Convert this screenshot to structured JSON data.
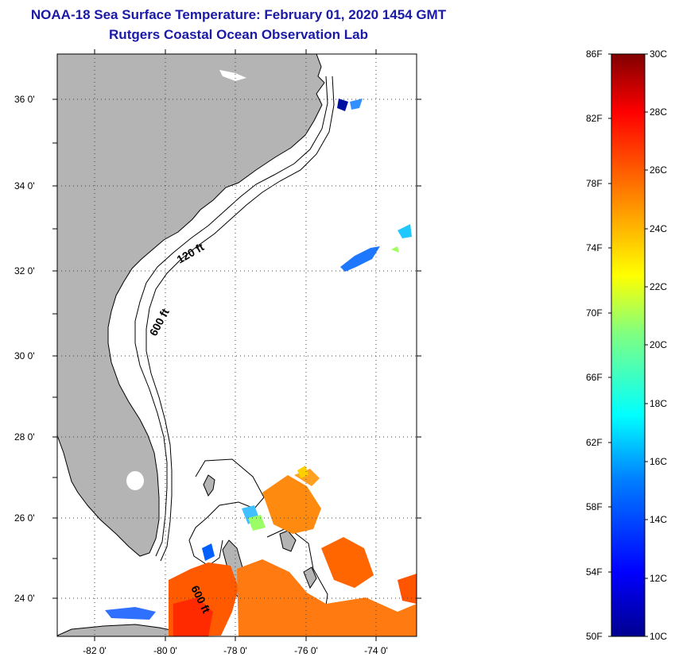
{
  "title": {
    "line1": "NOAA-18 Sea Surface Temperature:  February 01, 2020 1454 GMT",
    "line2": "Rutgers Coastal Ocean Observation Lab"
  },
  "map": {
    "lat_labels": [
      "36 0'",
      "34 0'",
      "32 0'",
      "30 0'",
      "28 0'",
      "26 0'",
      "24 0'"
    ],
    "lon_labels": [
      "-82 0'",
      "-80 0'",
      "-78 0'",
      "-76 0'",
      "-74 0'"
    ],
    "contour_labels": [
      "120 ft",
      "600 ft",
      "600 ft"
    ],
    "land_color": "#b4b4b4",
    "grid_style": "dotted"
  },
  "colorbar": {
    "fahrenheit_labels": [
      "86F",
      "82F",
      "78F",
      "74F",
      "70F",
      "66F",
      "62F",
      "58F",
      "54F",
      "50F"
    ],
    "celsius_labels": [
      "30C",
      "28C",
      "26C",
      "24C",
      "22C",
      "20C",
      "18C",
      "16C",
      "14C",
      "12C",
      "10C"
    ],
    "color_stops": [
      "#00008f",
      "#0000ff",
      "#0080ff",
      "#00ffff",
      "#80ff80",
      "#ffff00",
      "#ff8000",
      "#ff0000",
      "#800000"
    ]
  }
}
